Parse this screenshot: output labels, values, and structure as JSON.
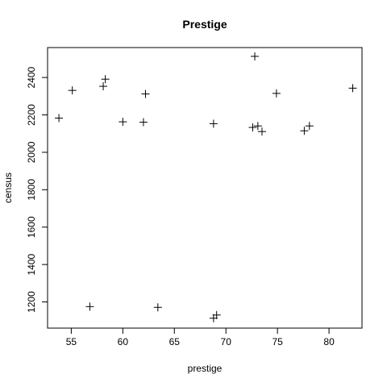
{
  "chart_data": {
    "type": "scatter",
    "title": "Prestige",
    "xlabel": "prestige",
    "ylabel": "census",
    "xlim": [
      52.7,
      83.2
    ],
    "ylim": [
      1060,
      2560
    ],
    "x_ticks": [
      55,
      60,
      65,
      70,
      75,
      80
    ],
    "y_ticks": [
      1200,
      1400,
      1600,
      1800,
      2000,
      2200,
      2400
    ],
    "x_tick_labels": [
      "55",
      "60",
      "65",
      "70",
      "75",
      "80"
    ],
    "y_tick_labels": [
      "1200",
      "1400",
      "1600",
      "1800",
      "2000",
      "2200",
      "2400"
    ],
    "marker": "plus",
    "grid": false,
    "color": "#000000",
    "points": [
      {
        "x": 53.8,
        "y": 2183
      },
      {
        "x": 55.1,
        "y": 2331
      },
      {
        "x": 56.8,
        "y": 1175
      },
      {
        "x": 58.1,
        "y": 2353
      },
      {
        "x": 58.3,
        "y": 2391
      },
      {
        "x": 60.0,
        "y": 2163
      },
      {
        "x": 62.0,
        "y": 2161
      },
      {
        "x": 62.2,
        "y": 2312
      },
      {
        "x": 63.4,
        "y": 1171
      },
      {
        "x": 68.8,
        "y": 2153
      },
      {
        "x": 68.8,
        "y": 1113
      },
      {
        "x": 69.1,
        "y": 1130
      },
      {
        "x": 72.6,
        "y": 2133
      },
      {
        "x": 72.8,
        "y": 2513
      },
      {
        "x": 73.1,
        "y": 2141
      },
      {
        "x": 73.5,
        "y": 2111
      },
      {
        "x": 74.9,
        "y": 2315
      },
      {
        "x": 77.6,
        "y": 2115
      },
      {
        "x": 78.1,
        "y": 2141
      },
      {
        "x": 82.3,
        "y": 2343
      }
    ]
  }
}
